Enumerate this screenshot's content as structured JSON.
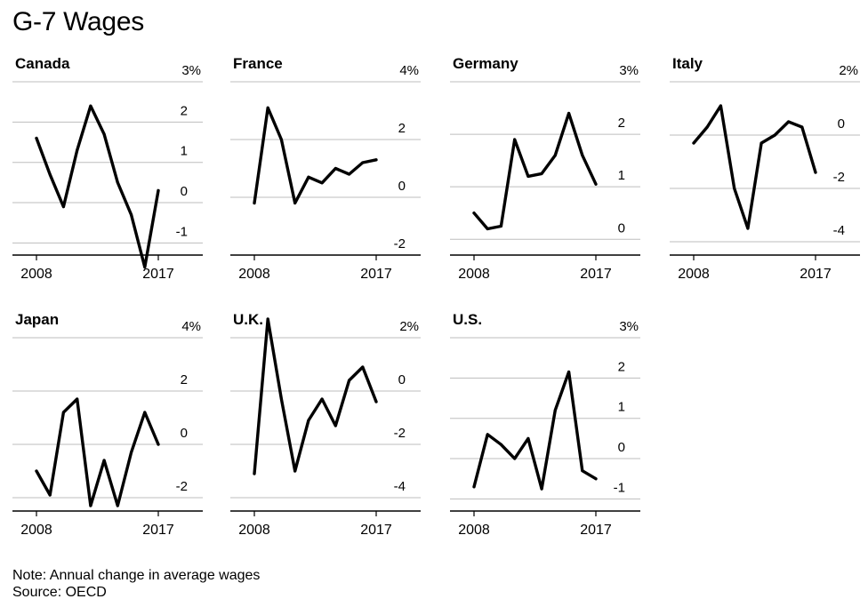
{
  "title": "G-7 Wages",
  "note": "Note: Annual change in average wages",
  "source": "Source: OECD",
  "chart_data": [
    {
      "type": "line",
      "title": "Canada",
      "x": [
        2008,
        2009,
        2010,
        2011,
        2012,
        2013,
        2014,
        2015,
        2016,
        2017
      ],
      "values": [
        1.6,
        0.7,
        -0.1,
        1.3,
        2.4,
        1.7,
        0.5,
        -0.3,
        -1.6,
        0.3
      ],
      "ylim": [
        -1.3,
        3
      ],
      "yticks": [
        -1,
        0,
        1,
        2
      ],
      "top_label": "3%",
      "xticks": [
        "2008",
        "2017"
      ]
    },
    {
      "type": "line",
      "title": "France",
      "x": [
        2008,
        2009,
        2010,
        2011,
        2012,
        2013,
        2014,
        2015,
        2016,
        2017
      ],
      "values": [
        -0.2,
        3.1,
        2.0,
        -0.2,
        0.7,
        0.5,
        1.0,
        0.8,
        1.2,
        1.3
      ],
      "ylim": [
        -2,
        4
      ],
      "yticks": [
        -2,
        0,
        2
      ],
      "top_label": "4%",
      "xticks": [
        "2008",
        "2017"
      ]
    },
    {
      "type": "line",
      "title": "Germany",
      "x": [
        2008,
        2009,
        2010,
        2011,
        2012,
        2013,
        2014,
        2015,
        2016,
        2017
      ],
      "values": [
        0.5,
        0.2,
        0.25,
        1.9,
        1.2,
        1.25,
        1.6,
        2.4,
        1.6,
        1.05
      ],
      "ylim": [
        -0.3,
        3
      ],
      "yticks": [
        0,
        1,
        2
      ],
      "top_label": "3%",
      "xticks": [
        "2008",
        "2017"
      ]
    },
    {
      "type": "line",
      "title": "Italy",
      "x": [
        2008,
        2009,
        2010,
        2011,
        2012,
        2013,
        2014,
        2015,
        2016,
        2017
      ],
      "values": [
        -0.3,
        0.3,
        1.1,
        -2.0,
        -3.5,
        -0.3,
        0.0,
        0.5,
        0.3,
        -1.4
      ],
      "ylim": [
        -4.5,
        2
      ],
      "yticks": [
        -4,
        -2,
        0
      ],
      "top_label": "2%",
      "xticks": [
        "2008",
        "2017"
      ]
    },
    {
      "type": "line",
      "title": "Japan",
      "x": [
        2008,
        2009,
        2010,
        2011,
        2012,
        2013,
        2014,
        2015,
        2016,
        2017
      ],
      "values": [
        -1.0,
        -1.9,
        1.2,
        1.7,
        -2.3,
        -0.6,
        -2.3,
        -0.3,
        1.2,
        0.0
      ],
      "ylim": [
        -2.5,
        4
      ],
      "yticks": [
        -2,
        0,
        2
      ],
      "top_label": "4%",
      "xticks": [
        "2008",
        "2017"
      ]
    },
    {
      "type": "line",
      "title": "U.K.",
      "x": [
        2008,
        2009,
        2010,
        2011,
        2012,
        2013,
        2014,
        2015,
        2016,
        2017
      ],
      "values": [
        -3.1,
        2.7,
        -0.3,
        -3.0,
        -1.1,
        -0.3,
        -1.3,
        0.4,
        0.9,
        -0.4
      ],
      "ylim": [
        -4.5,
        2
      ],
      "yticks": [
        -4,
        -2,
        0
      ],
      "top_label": "2%",
      "xticks": [
        "2008",
        "2017"
      ]
    },
    {
      "type": "line",
      "title": "U.S.",
      "x": [
        2008,
        2009,
        2010,
        2011,
        2012,
        2013,
        2014,
        2015,
        2016,
        2017
      ],
      "values": [
        -0.7,
        0.6,
        0.35,
        0.0,
        0.5,
        -0.75,
        1.2,
        2.15,
        -0.3,
        -0.5
      ],
      "ylim": [
        -1.3,
        3
      ],
      "yticks": [
        -1,
        0,
        1,
        2
      ],
      "top_label": "3%",
      "xticks": [
        "2008",
        "2017"
      ]
    }
  ]
}
